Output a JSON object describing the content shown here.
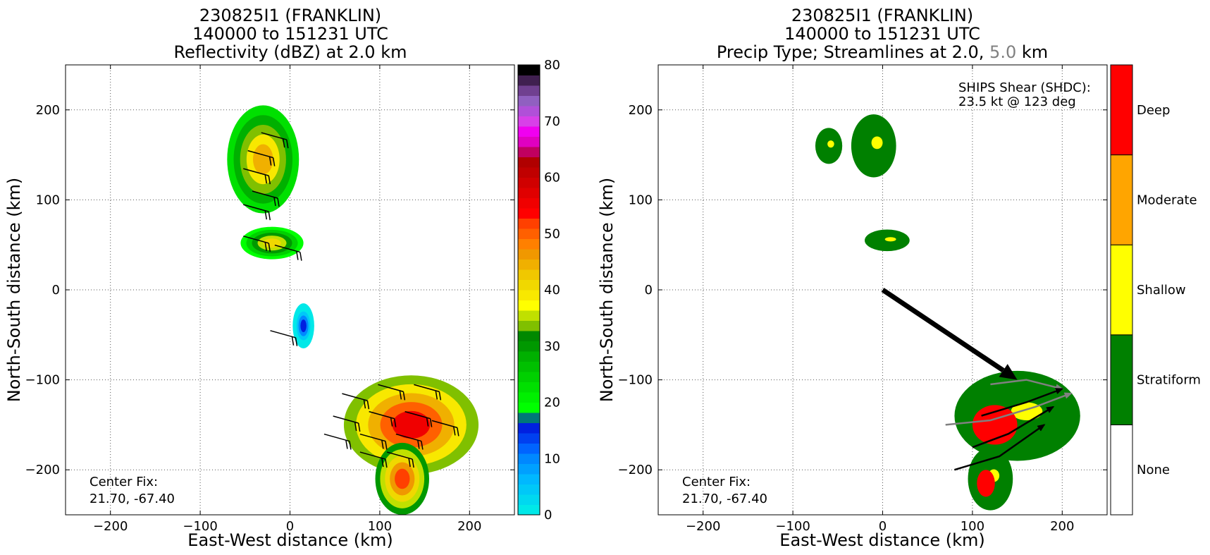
{
  "chart_data": [
    {
      "type": "heatmap",
      "title_lines": [
        "230825I1 (FRANKLIN)",
        "140000 to 151231 UTC",
        "Reflectivity (dBZ) at 2.0 km"
      ],
      "xlabel": "East-West distance (km)",
      "ylabel": "North-South distance (km)",
      "xlim": [
        -250,
        250
      ],
      "ylim": [
        -250,
        250
      ],
      "xticks": [
        -200,
        -100,
        0,
        100,
        200
      ],
      "yticks": [
        -200,
        -100,
        0,
        100,
        200
      ],
      "grid": true,
      "annotation": {
        "lines": [
          "Center Fix:",
          "21.70, -67.40"
        ]
      },
      "colorbar": {
        "min": 0,
        "max": 80,
        "ticks": [
          0,
          10,
          20,
          30,
          40,
          50,
          60,
          70,
          80
        ],
        "colors": [
          "#00e8e8",
          "#00d8f0",
          "#00c8f8",
          "#00b8ff",
          "#00a0ff",
          "#0088ff",
          "#0064ff",
          "#0040f0",
          "#0020e0",
          "#007878",
          "#00ff00",
          "#00f000",
          "#00e000",
          "#00d000",
          "#00c000",
          "#00b000",
          "#009800",
          "#008800",
          "#80c000",
          "#c0e000",
          "#ffff00",
          "#f8e800",
          "#f0d800",
          "#f0c800",
          "#f0b000",
          "#f09800",
          "#ff8000",
          "#ff6000",
          "#ff4000",
          "#ff0000",
          "#f00000",
          "#e00000",
          "#d00000",
          "#c00000",
          "#b00000",
          "#c00060",
          "#e000c0",
          "#f000f0",
          "#d840e8",
          "#b050d8",
          "#9060c0",
          "#704090",
          "#402050",
          "#000000"
        ]
      },
      "echo_regions": [
        {
          "cx": -30,
          "cy": 145,
          "rx": 40,
          "ry": 60,
          "level": 24
        },
        {
          "cx": -20,
          "cy": 52,
          "rx": 35,
          "ry": 18,
          "level": 22
        },
        {
          "cx": 15,
          "cy": -40,
          "rx": 12,
          "ry": 25,
          "level": 8
        },
        {
          "cx": 135,
          "cy": -150,
          "rx": 75,
          "ry": 55,
          "level": 30
        },
        {
          "cx": 125,
          "cy": -210,
          "rx": 30,
          "ry": 40,
          "level": 28
        }
      ],
      "barbs": [
        {
          "x": -10,
          "y": 170
        },
        {
          "x": -25,
          "y": 150
        },
        {
          "x": -30,
          "y": 130
        },
        {
          "x": -20,
          "y": 105
        },
        {
          "x": -30,
          "y": 90
        },
        {
          "x": -30,
          "y": 55
        },
        {
          "x": 5,
          "y": 45
        },
        {
          "x": 0,
          "y": -50
        },
        {
          "x": 80,
          "y": -120
        },
        {
          "x": 120,
          "y": -110
        },
        {
          "x": 160,
          "y": -110
        },
        {
          "x": 70,
          "y": -145
        },
        {
          "x": 110,
          "y": -140
        },
        {
          "x": 150,
          "y": -140
        },
        {
          "x": 60,
          "y": -165
        },
        {
          "x": 100,
          "y": -165
        },
        {
          "x": 140,
          "y": -165
        },
        {
          "x": 180,
          "y": -150
        },
        {
          "x": 100,
          "y": -185
        },
        {
          "x": 130,
          "y": -185
        }
      ]
    },
    {
      "type": "heatmap",
      "title_lines": [
        "230825I1 (FRANKLIN)",
        "140000 to 151231 UTC"
      ],
      "title_line3_parts": [
        "Precip Type; Streamlines at 2.0, ",
        "5.0",
        " km"
      ],
      "title_line3_colors": [
        "#000000",
        "#808080",
        "#000000"
      ],
      "xlabel": "East-West distance (km)",
      "ylabel": "North-South distance (km)",
      "xlim": [
        -250,
        250
      ],
      "ylim": [
        -250,
        250
      ],
      "xticks": [
        -200,
        -100,
        0,
        100,
        200
      ],
      "yticks": [
        -200,
        -100,
        0,
        100,
        200
      ],
      "grid": true,
      "annotation": {
        "lines": [
          "Center Fix:",
          "21.70, -67.40"
        ]
      },
      "shear_text": [
        "SHIPS Shear (SHDC):",
        "23.5 kt @ 123 deg"
      ],
      "shear_vector": {
        "from": [
          0,
          0
        ],
        "to": [
          150,
          -100
        ]
      },
      "colorbar": {
        "categories": [
          "None",
          "Stratiform",
          "Shallow",
          "Moderate",
          "Deep"
        ],
        "colors": [
          "#ffffff",
          "#008000",
          "#ffff00",
          "#ffa500",
          "#ff0000"
        ]
      },
      "precip_regions": [
        {
          "cx": -60,
          "cy": 160,
          "rx": 15,
          "ry": 20,
          "category": 1
        },
        {
          "cx": -10,
          "cy": 160,
          "rx": 25,
          "ry": 35,
          "category": 1
        },
        {
          "cx": 5,
          "cy": 55,
          "rx": 25,
          "ry": 12,
          "category": 1
        },
        {
          "cx": 150,
          "cy": -140,
          "rx": 70,
          "ry": 50,
          "category": 1
        },
        {
          "cx": 125,
          "cy": -150,
          "rx": 25,
          "ry": 22,
          "category": 4
        },
        {
          "cx": 120,
          "cy": -210,
          "rx": 25,
          "ry": 35,
          "category": 1
        },
        {
          "cx": 115,
          "cy": -215,
          "rx": 10,
          "ry": 15,
          "category": 4
        }
      ],
      "streamlines_2km": [
        [
          [
            80,
            -200
          ],
          [
            130,
            -185
          ],
          [
            180,
            -150
          ]
        ],
        [
          [
            100,
            -175
          ],
          [
            140,
            -160
          ],
          [
            190,
            -130
          ]
        ],
        [
          [
            110,
            -140
          ],
          [
            160,
            -125
          ],
          [
            200,
            -110
          ]
        ]
      ],
      "streamlines_5km": [
        [
          [
            70,
            -150
          ],
          [
            120,
            -145
          ],
          [
            170,
            -130
          ],
          [
            210,
            -115
          ]
        ],
        [
          [
            120,
            -105
          ],
          [
            160,
            -100
          ],
          [
            200,
            -110
          ]
        ]
      ]
    }
  ]
}
